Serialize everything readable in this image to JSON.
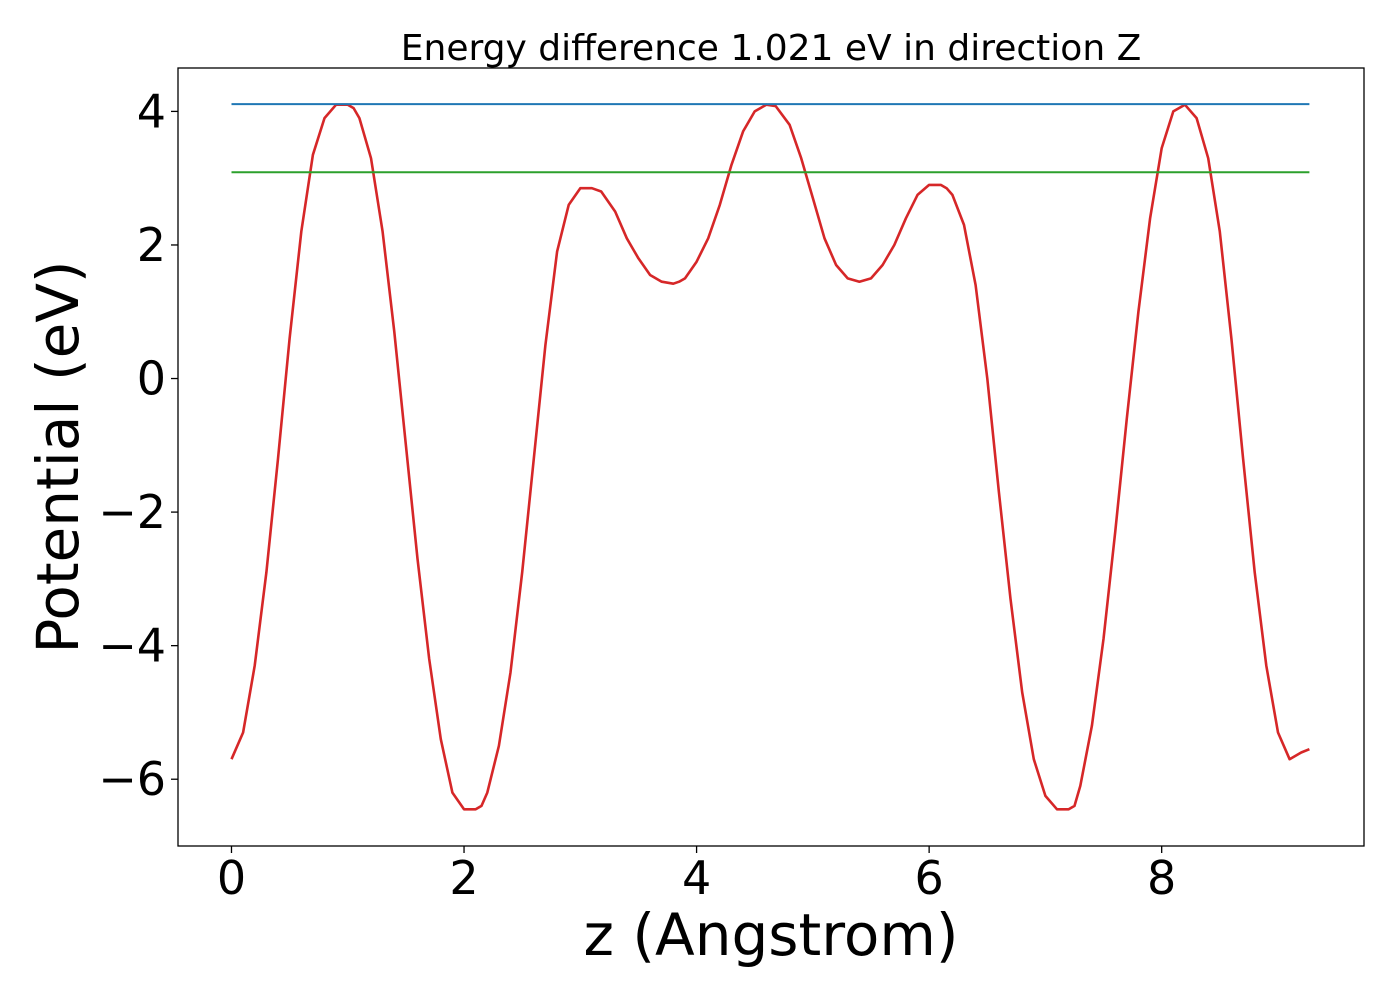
{
  "chart_data": {
    "type": "line",
    "title": "Energy difference 1.021 eV in direction Z",
    "xlabel": "z (Angstrom)",
    "ylabel": "Potential (eV)",
    "xlim": [
      -0.46,
      9.74
    ],
    "ylim": [
      -7.0,
      4.65
    ],
    "xticks": [
      {
        "value": 0,
        "label": "0"
      },
      {
        "value": 2,
        "label": "2"
      },
      {
        "value": 4,
        "label": "4"
      },
      {
        "value": 6,
        "label": "6"
      },
      {
        "value": 8,
        "label": "8"
      }
    ],
    "yticks": [
      {
        "value": 4,
        "label": "4"
      },
      {
        "value": 2,
        "label": "2"
      },
      {
        "value": 0,
        "label": "0"
      },
      {
        "value": -2,
        "label": "−2"
      },
      {
        "value": -4,
        "label": "−4"
      },
      {
        "value": -6,
        "label": "−6"
      }
    ],
    "grid": false,
    "series": [
      {
        "color": "#d62728",
        "x": [
          0.0,
          0.1,
          0.2,
          0.3,
          0.4,
          0.5,
          0.6,
          0.7,
          0.8,
          0.9,
          1.0,
          1.05,
          1.1,
          1.2,
          1.3,
          1.4,
          1.5,
          1.6,
          1.7,
          1.8,
          1.9,
          2.0,
          2.1,
          2.15,
          2.2,
          2.3,
          2.4,
          2.5,
          2.6,
          2.7,
          2.8,
          2.9,
          3.0,
          3.1,
          3.18,
          3.3,
          3.4,
          3.5,
          3.6,
          3.7,
          3.8,
          3.85,
          3.9,
          4.0,
          4.1,
          4.2,
          4.3,
          4.4,
          4.5,
          4.6,
          4.68,
          4.8,
          4.9,
          5.0,
          5.1,
          5.2,
          5.3,
          5.4,
          5.5,
          5.6,
          5.7,
          5.8,
          5.9,
          6.0,
          6.1,
          6.15,
          6.2,
          6.3,
          6.4,
          6.5,
          6.6,
          6.7,
          6.8,
          6.9,
          7.0,
          7.1,
          7.2,
          7.25,
          7.3,
          7.4,
          7.5,
          7.6,
          7.7,
          7.8,
          7.9,
          8.0,
          8.1,
          8.2,
          8.3,
          8.4,
          8.5,
          8.6,
          8.7,
          8.8,
          8.9,
          9.0,
          9.1,
          9.2,
          9.27
        ],
        "y": [
          -5.7,
          -5.3,
          -4.3,
          -2.9,
          -1.2,
          0.6,
          2.2,
          3.35,
          3.9,
          4.1,
          4.1,
          4.05,
          3.9,
          3.3,
          2.2,
          0.7,
          -1.0,
          -2.7,
          -4.2,
          -5.4,
          -6.2,
          -6.45,
          -6.45,
          -6.4,
          -6.2,
          -5.5,
          -4.4,
          -2.9,
          -1.2,
          0.5,
          1.9,
          2.6,
          2.85,
          2.85,
          2.8,
          2.5,
          2.1,
          1.8,
          1.55,
          1.45,
          1.42,
          1.45,
          1.5,
          1.75,
          2.1,
          2.6,
          3.2,
          3.7,
          4.0,
          4.1,
          4.08,
          3.8,
          3.3,
          2.7,
          2.1,
          1.7,
          1.5,
          1.45,
          1.5,
          1.7,
          2.0,
          2.4,
          2.75,
          2.9,
          2.9,
          2.85,
          2.75,
          2.3,
          1.4,
          0.0,
          -1.7,
          -3.3,
          -4.7,
          -5.7,
          -6.25,
          -6.45,
          -6.45,
          -6.4,
          -6.1,
          -5.2,
          -3.9,
          -2.3,
          -0.6,
          1.0,
          2.4,
          3.45,
          4.0,
          4.1,
          3.9,
          3.3,
          2.2,
          0.6,
          -1.2,
          -2.9,
          -4.3,
          -5.3,
          -5.7,
          -5.6,
          -5.55
        ]
      },
      {
        "color": "#1f77b4",
        "x": [
          0.0,
          9.27
        ],
        "y": [
          4.11,
          4.11
        ]
      },
      {
        "color": "#2ca02c",
        "x": [
          0.0,
          9.27
        ],
        "y": [
          3.09,
          3.09
        ]
      }
    ]
  }
}
